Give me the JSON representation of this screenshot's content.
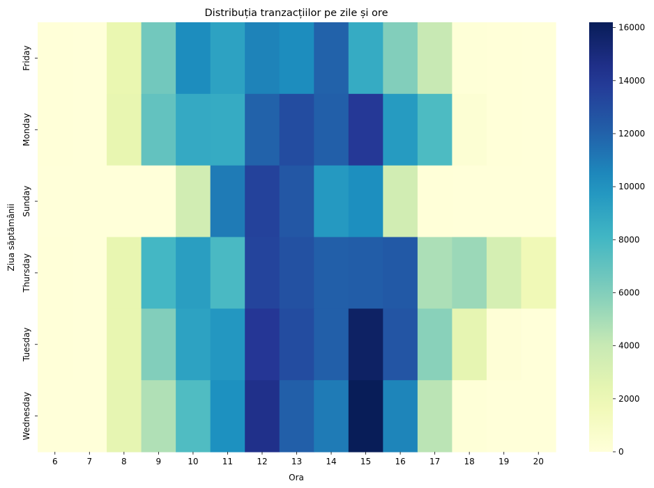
{
  "chart_data": {
    "type": "heatmap",
    "title": "Distribuția tranzacțiilor pe zile și ore",
    "xlabel": "Ora",
    "ylabel": "Ziua săptămânii",
    "x": [
      "6",
      "7",
      "8",
      "9",
      "10",
      "11",
      "12",
      "13",
      "14",
      "15",
      "16",
      "17",
      "18",
      "19",
      "20"
    ],
    "y": [
      "Friday",
      "Monday",
      "Sunday",
      "Thursday",
      "Tuesday",
      "Wednesday"
    ],
    "values": [
      [
        40,
        20,
        2200,
        6500,
        10300,
        9200,
        10700,
        10300,
        12000,
        8700,
        6000,
        4000,
        100,
        50,
        20
      ],
      [
        30,
        20,
        2300,
        7000,
        8800,
        8700,
        12000,
        13000,
        12100,
        14000,
        9600,
        7700,
        300,
        40,
        20
      ],
      [
        20,
        20,
        10,
        10,
        3500,
        11000,
        13500,
        12500,
        9700,
        10200,
        3500,
        30,
        10,
        10,
        10
      ],
      [
        40,
        20,
        2300,
        8000,
        9400,
        7800,
        13400,
        12800,
        12100,
        12200,
        12400,
        4800,
        5300,
        3300,
        1700
      ],
      [
        30,
        20,
        2300,
        6000,
        9200,
        9800,
        14100,
        13000,
        12100,
        15800,
        12600,
        5800,
        2400,
        150,
        20
      ],
      [
        20,
        20,
        2400,
        4700,
        7600,
        10100,
        14500,
        12100,
        11000,
        16200,
        10600,
        4400,
        100,
        20,
        10
      ]
    ],
    "colorbar": {
      "min": 0,
      "max": 16200,
      "ticks": [
        "0",
        "2000",
        "4000",
        "6000",
        "8000",
        "10000",
        "12000",
        "14000",
        "16000"
      ]
    },
    "colormap": "YlGnBu"
  }
}
